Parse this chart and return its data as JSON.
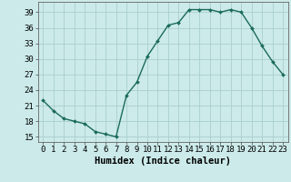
{
  "x": [
    0,
    1,
    2,
    3,
    4,
    5,
    6,
    7,
    8,
    9,
    10,
    11,
    12,
    13,
    14,
    15,
    16,
    17,
    18,
    19,
    20,
    21,
    22,
    23
  ],
  "y": [
    22,
    20,
    18.5,
    18,
    17.5,
    16,
    15.5,
    15,
    23,
    25.5,
    30.5,
    33.5,
    36.5,
    37,
    39.5,
    39.5,
    39.5,
    39,
    39.5,
    39,
    36,
    32.5,
    29.5,
    27
  ],
  "line_color": "#1a6b5a",
  "marker": "D",
  "marker_size": 2.0,
  "bg_color": "#cceaea",
  "grid_color": "#aacece",
  "xlabel": "Humidex (Indice chaleur)",
  "xlim": [
    -0.5,
    23.5
  ],
  "ylim": [
    14,
    41
  ],
  "yticks": [
    15,
    18,
    21,
    24,
    27,
    30,
    33,
    36,
    39
  ],
  "xticks": [
    0,
    1,
    2,
    3,
    4,
    5,
    6,
    7,
    8,
    9,
    10,
    11,
    12,
    13,
    14,
    15,
    16,
    17,
    18,
    19,
    20,
    21,
    22,
    23
  ],
  "tick_fontsize": 6.5,
  "label_fontsize": 7.5
}
